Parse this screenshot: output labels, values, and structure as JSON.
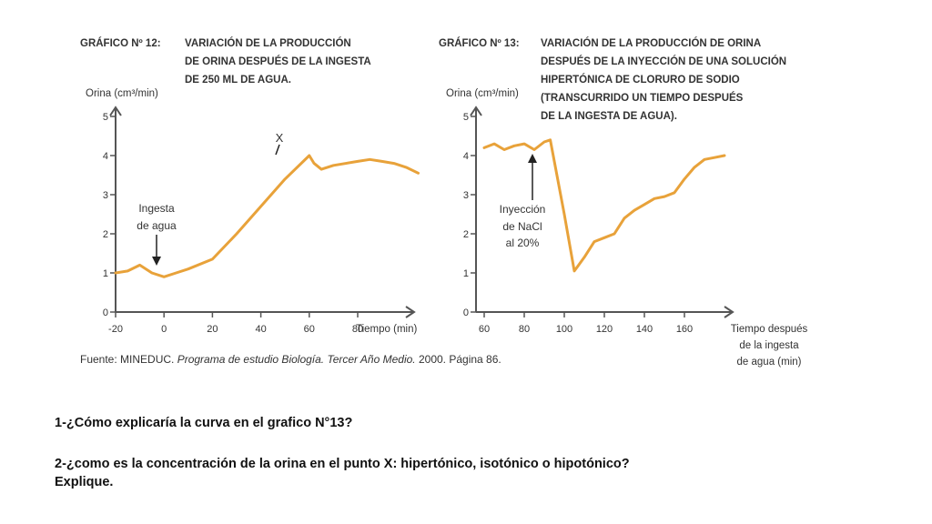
{
  "chart12": {
    "label": "GRÁFICO Nº 12:",
    "title_lines": [
      "VARIACIÓN DE LA PRODUCCIÓN",
      "DE ORINA DESPUÉS DE LA INGESTA",
      "DE 250 ML DE AGUA."
    ]
  },
  "chart13": {
    "label": "GRÁFICO Nº 13:",
    "title_lines": [
      "VARIACIÓN DE LA PRODUCCIÓN DE ORINA",
      "DESPUÉS DE LA INYECCIÓN DE UNA SOLUCIÓN",
      "HIPERTÓNICA DE CLORURO DE SODIO",
      "(TRANSCURRIDO UN TIEMPO DESPUÉS",
      "DE LA INGESTA DE AGUA)."
    ]
  },
  "source": {
    "prefix": "Fuente: MINEDUC. ",
    "italic": "Programa de estudio Biología. Tercer Año Medio.",
    "suffix": " 2000. Página 86."
  },
  "questions": {
    "q1": "1-¿Cómo explicaría la curva en el grafico N°13?",
    "q2_line1": "2-¿como es la concentración de la orina en el punto X: hipertónico, isotónico o hipotónico?",
    "q2_line2": "Explique."
  },
  "colors": {
    "curve": "#e8a23a",
    "axis": "#555555"
  },
  "chart_data": [
    {
      "type": "line",
      "ylabel": "Orina (cm³/min)",
      "xlabel": "Tiempo (min)",
      "xlim": [
        -20,
        100
      ],
      "ylim": [
        0,
        5
      ],
      "xticks": [
        -20,
        0,
        20,
        40,
        60,
        80
      ],
      "yticks": [
        0,
        1,
        2,
        3,
        4,
        5
      ],
      "series": [
        {
          "x": [
            -20,
            -15,
            -10,
            -5,
            0,
            5,
            10,
            20,
            30,
            40,
            50,
            60,
            62,
            65,
            70,
            80,
            85,
            90,
            95,
            100,
            105
          ],
          "y": [
            1.0,
            1.05,
            1.2,
            1.0,
            0.9,
            1.0,
            1.1,
            1.35,
            2.0,
            2.7,
            3.4,
            4.0,
            3.8,
            3.65,
            3.75,
            3.85,
            3.9,
            3.85,
            3.8,
            3.7,
            3.55
          ]
        }
      ],
      "annotations": [
        {
          "text_lines": [
            "Ingesta",
            "de agua"
          ],
          "x": 0,
          "y": 0.9
        },
        {
          "text": "X",
          "x": 60,
          "y": 4.0
        }
      ]
    },
    {
      "type": "line",
      "ylabel": "Orina (cm³/min)",
      "xlabel_lines": [
        "Tiempo después",
        "de la ingesta",
        "de agua (min)"
      ],
      "xlim": [
        60,
        180
      ],
      "ylim": [
        0,
        5
      ],
      "xticks": [
        60,
        80,
        100,
        120,
        140,
        160
      ],
      "yticks": [
        0,
        1,
        2,
        3,
        4,
        5
      ],
      "series": [
        {
          "x": [
            60,
            65,
            70,
            75,
            80,
            85,
            90,
            93,
            100,
            105,
            110,
            115,
            120,
            125,
            130,
            135,
            140,
            145,
            150,
            155,
            160,
            165,
            170,
            175,
            180
          ],
          "y": [
            4.2,
            4.3,
            4.15,
            4.25,
            4.3,
            4.15,
            4.35,
            4.4,
            2.5,
            1.05,
            1.4,
            1.8,
            1.9,
            2.0,
            2.4,
            2.6,
            2.75,
            2.9,
            2.95,
            3.05,
            3.4,
            3.7,
            3.9,
            3.95,
            4.0
          ]
        }
      ],
      "annotations": [
        {
          "text_lines": [
            "Inyección",
            "de NaCl",
            "al 20%"
          ],
          "x": 85,
          "y": 4.15
        }
      ]
    }
  ]
}
